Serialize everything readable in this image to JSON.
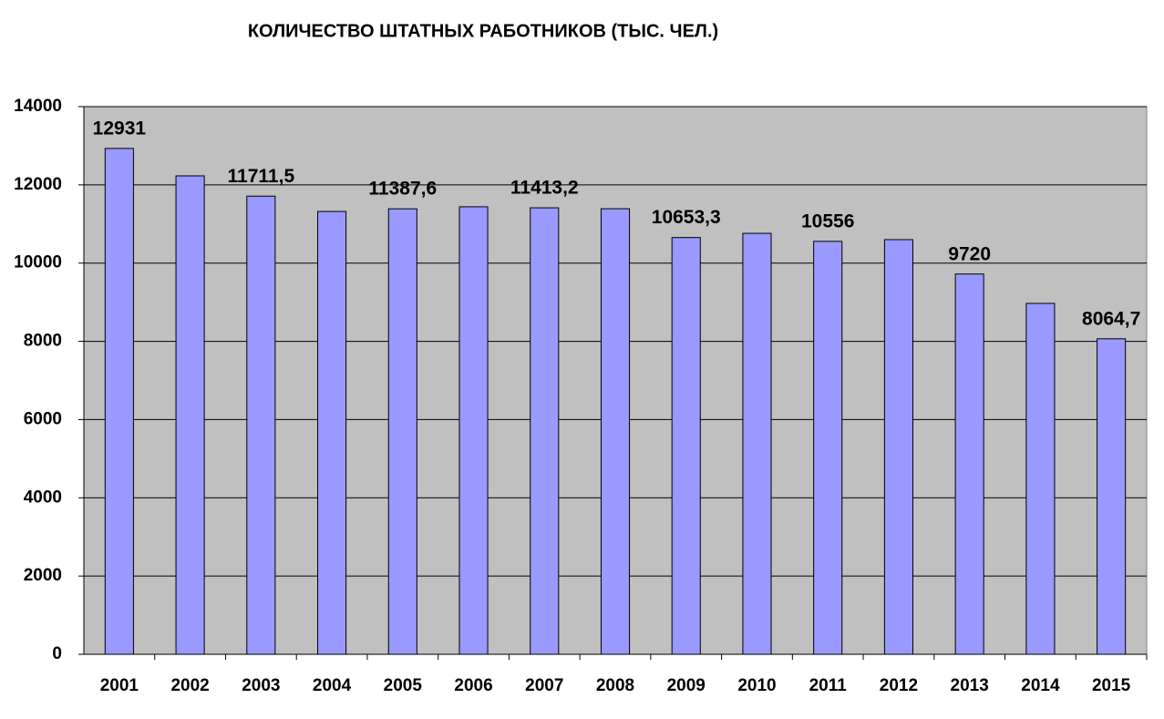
{
  "chart_data": {
    "type": "bar",
    "title": "КОЛИЧЕСТВО ШТАТНЫХ РАБОТНИКОВ (ТЫС. ЧЕЛ.)",
    "categories": [
      "2001",
      "2002",
      "2003",
      "2004",
      "2005",
      "2006",
      "2007",
      "2008",
      "2009",
      "2010",
      "2011",
      "2012",
      "2013",
      "2014",
      "2015"
    ],
    "values": [
      12931,
      12230,
      11711.5,
      11320,
      11387.6,
      11440,
      11413.2,
      11390,
      10653.3,
      10760,
      10556,
      10600,
      9720,
      8970,
      8064.7
    ],
    "value_labels": [
      "12931",
      null,
      "11711,5",
      null,
      "11387,6",
      null,
      "11413,2",
      null,
      "10653,3",
      null,
      "10556",
      null,
      "9720",
      null,
      "8064,7"
    ],
    "color": "#9999ff",
    "ylim": [
      0,
      14000
    ],
    "yticks": [
      0,
      2000,
      4000,
      6000,
      8000,
      10000,
      12000,
      14000
    ],
    "grid": true
  }
}
